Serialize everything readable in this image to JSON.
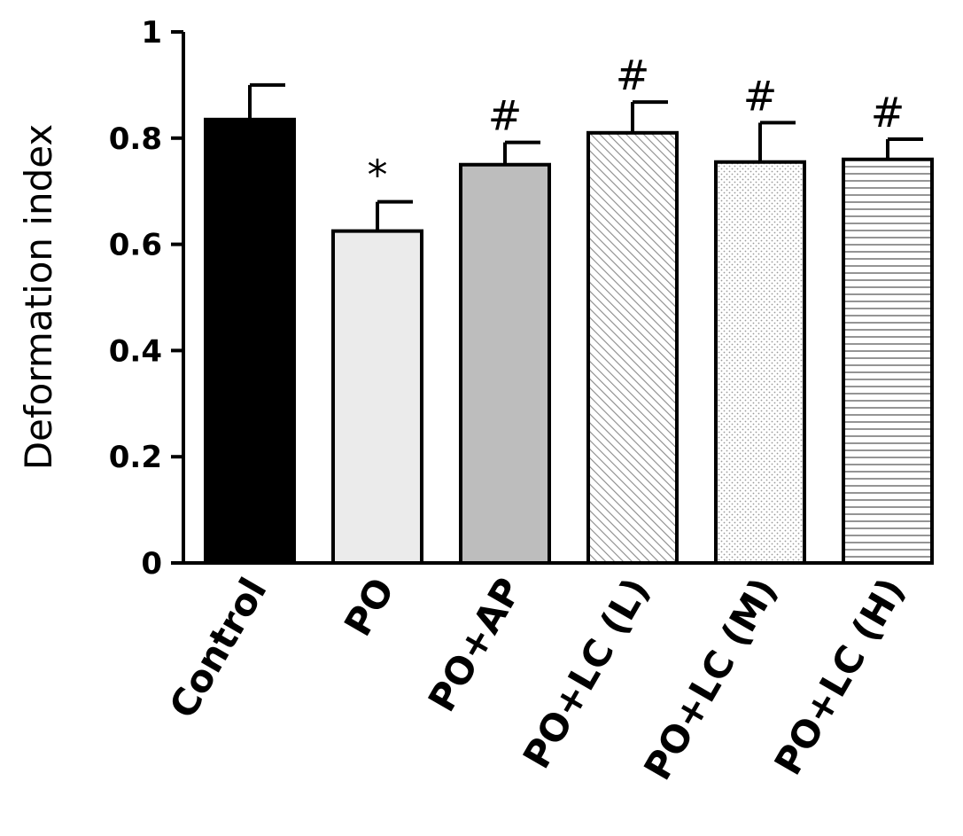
{
  "chart_data": {
    "type": "bar",
    "ylabel": "Deformation index",
    "xlabel": "",
    "ylim": [
      0,
      1
    ],
    "yticks": [
      0,
      0.2,
      0.4,
      0.6,
      0.8,
      1
    ],
    "ytick_labels": [
      "0",
      "0.2",
      "0.4",
      "0.6",
      "0.8",
      "1"
    ],
    "grid": false,
    "categories": [
      "Control",
      "PO",
      "PO+AP",
      "PO+LC (L)",
      "PO+LC (M)",
      "PO+LC (H)"
    ],
    "values": [
      0.835,
      0.625,
      0.75,
      0.81,
      0.755,
      0.76
    ],
    "errors": [
      0.065,
      0.055,
      0.042,
      0.058,
      0.074,
      0.038
    ],
    "annotations": [
      "",
      "*",
      "#",
      "#",
      "#",
      "#"
    ],
    "fills": [
      "solid-black",
      "solid-light",
      "solid-gray",
      "diagonal-hatch",
      "dots",
      "horizontal-lines"
    ],
    "colors": {
      "black": "#000000",
      "light": "#ebebeb",
      "gray": "#bdbdbd",
      "pattern": "#8a8a8a"
    }
  }
}
